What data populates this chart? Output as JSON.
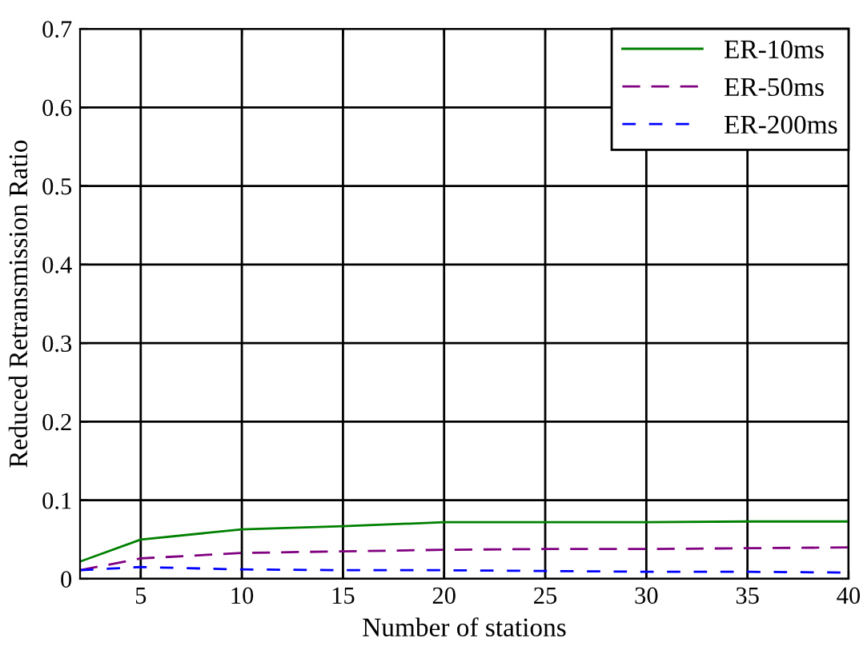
{
  "chart_data": {
    "type": "line",
    "xlabel": "Number of stations",
    "ylabel": "Reduced Retransmission Ratio",
    "x": [
      2,
      5,
      10,
      15,
      20,
      25,
      30,
      35,
      40
    ],
    "series": [
      {
        "name": "ER-10ms",
        "color": "#008000",
        "line_style": "solid",
        "values": [
          0.022,
          0.05,
          0.063,
          0.067,
          0.072,
          0.072,
          0.072,
          0.073,
          0.073
        ]
      },
      {
        "name": "ER-50ms",
        "color": "#800080",
        "line_style": "dashed",
        "values": [
          0.011,
          0.026,
          0.033,
          0.035,
          0.037,
          0.038,
          0.038,
          0.039,
          0.04
        ]
      },
      {
        "name": "ER-200ms",
        "color": "#0000ff",
        "line_style": "dashed",
        "values": [
          0.011,
          0.015,
          0.012,
          0.011,
          0.011,
          0.01,
          0.009,
          0.009,
          0.008
        ]
      }
    ],
    "xlim": [
      2,
      40
    ],
    "xticks": [
      5,
      10,
      15,
      20,
      25,
      30,
      35,
      40
    ],
    "ylim": [
      0,
      0.7
    ],
    "yticks": [
      0,
      0.1,
      0.2,
      0.3,
      0.4,
      0.5,
      0.6,
      0.7
    ],
    "grid": true,
    "legend": "top right",
    "marker": "none"
  }
}
